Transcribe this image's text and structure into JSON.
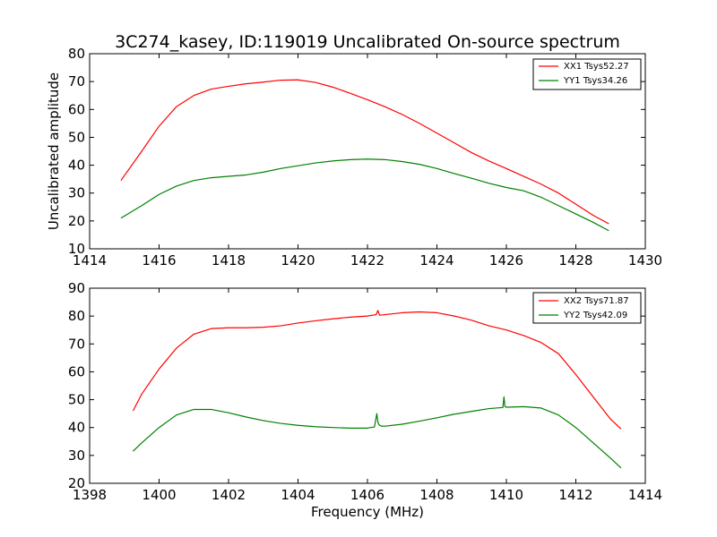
{
  "title": "3C274_kasey, ID:119019 Uncalibrated On-source spectrum",
  "chart_data": [
    {
      "type": "line",
      "title": "3C274_kasey, ID:119019 Uncalibrated On-source spectrum",
      "xlabel": "",
      "ylabel": "Uncalibrated amplitude",
      "xlim": [
        1414,
        1430
      ],
      "ylim": [
        10,
        80
      ],
      "xticks": [
        "1414",
        "1416",
        "1418",
        "1420",
        "1422",
        "1424",
        "1426",
        "1428",
        "1430"
      ],
      "yticks": [
        "10",
        "20",
        "30",
        "40",
        "50",
        "60",
        "70",
        "80"
      ],
      "legend_position": "top-right",
      "grid": false,
      "series": [
        {
          "name": "XX1 Tsys52.27",
          "color": "#ff0000",
          "x": [
            1414.9,
            1415.5,
            1416.0,
            1416.5,
            1417.0,
            1417.5,
            1418.0,
            1418.5,
            1419.0,
            1419.5,
            1420.0,
            1420.5,
            1421.0,
            1421.5,
            1422.0,
            1422.5,
            1423.0,
            1423.5,
            1424.0,
            1424.5,
            1425.0,
            1425.5,
            1426.0,
            1426.5,
            1427.0,
            1427.5,
            1428.0,
            1428.5,
            1428.95
          ],
          "values": [
            34.5,
            45.0,
            54.0,
            61.0,
            65.0,
            67.3,
            68.3,
            69.2,
            69.8,
            70.5,
            70.6,
            69.7,
            68.0,
            65.8,
            63.5,
            61.0,
            58.2,
            55.0,
            51.5,
            48.0,
            44.5,
            41.5,
            38.8,
            36.0,
            33.2,
            30.0,
            26.0,
            22.0,
            19.0
          ]
        },
        {
          "name": "YY1 Tsys34.26",
          "color": "#008000",
          "x": [
            1414.9,
            1415.5,
            1416.0,
            1416.5,
            1417.0,
            1417.5,
            1418.0,
            1418.5,
            1419.0,
            1419.5,
            1420.0,
            1420.5,
            1421.0,
            1421.5,
            1422.0,
            1422.5,
            1423.0,
            1423.5,
            1424.0,
            1424.5,
            1425.0,
            1425.5,
            1426.0,
            1426.5,
            1427.0,
            1427.5,
            1428.0,
            1428.5,
            1428.95
          ],
          "values": [
            21.0,
            25.5,
            29.5,
            32.5,
            34.5,
            35.5,
            36.0,
            36.5,
            37.5,
            38.8,
            39.8,
            40.8,
            41.5,
            42.0,
            42.2,
            42.0,
            41.3,
            40.3,
            38.8,
            37.0,
            35.3,
            33.5,
            32.0,
            30.8,
            28.5,
            25.5,
            22.5,
            19.5,
            16.5
          ]
        }
      ]
    },
    {
      "type": "line",
      "title": "",
      "xlabel": "Frequency (MHz)",
      "ylabel": "",
      "xlim": [
        1398,
        1414
      ],
      "ylim": [
        20,
        90
      ],
      "xticks": [
        "1398",
        "1400",
        "1402",
        "1404",
        "1406",
        "1408",
        "1410",
        "1412",
        "1414"
      ],
      "yticks": [
        "20",
        "30",
        "40",
        "50",
        "60",
        "70",
        "80",
        "90"
      ],
      "legend_position": "top-right",
      "grid": false,
      "series": [
        {
          "name": "XX2 Tsys71.87",
          "color": "#ff0000",
          "x": [
            1399.25,
            1399.5,
            1400.0,
            1400.5,
            1401.0,
            1401.5,
            1402.0,
            1402.5,
            1403.0,
            1403.5,
            1404.0,
            1404.5,
            1405.0,
            1405.5,
            1406.0,
            1406.25,
            1406.3,
            1406.35,
            1406.5,
            1407.0,
            1407.5,
            1408.0,
            1408.5,
            1409.0,
            1409.5,
            1410.0,
            1410.5,
            1411.0,
            1411.5,
            1412.0,
            1412.5,
            1413.0,
            1413.3
          ],
          "values": [
            46.0,
            52.0,
            61.0,
            68.5,
            73.5,
            75.5,
            75.8,
            75.8,
            76.0,
            76.5,
            77.5,
            78.3,
            79.0,
            79.6,
            80.0,
            80.5,
            82.0,
            80.3,
            80.5,
            81.2,
            81.5,
            81.2,
            80.0,
            78.5,
            76.5,
            75.0,
            73.0,
            70.5,
            66.5,
            59.0,
            51.0,
            43.0,
            39.5
          ]
        },
        {
          "name": "YY2 Tsys42.09",
          "color": "#008000",
          "x": [
            1399.25,
            1399.5,
            1400.0,
            1400.5,
            1401.0,
            1401.5,
            1402.0,
            1402.5,
            1403.0,
            1403.5,
            1404.0,
            1404.5,
            1405.0,
            1405.5,
            1406.0,
            1406.2,
            1406.27,
            1406.3,
            1406.33,
            1406.4,
            1406.5,
            1407.0,
            1407.5,
            1408.0,
            1408.5,
            1409.0,
            1409.5,
            1409.9,
            1409.93,
            1409.96,
            1410.0,
            1410.5,
            1411.0,
            1411.5,
            1412.0,
            1412.5,
            1413.0,
            1413.3
          ],
          "values": [
            31.5,
            34.5,
            40.0,
            44.5,
            46.5,
            46.5,
            45.3,
            43.8,
            42.5,
            41.5,
            40.8,
            40.3,
            40.0,
            39.8,
            39.8,
            40.2,
            45.0,
            42.0,
            41.0,
            40.5,
            40.5,
            41.2,
            42.3,
            43.5,
            44.8,
            45.8,
            46.8,
            47.2,
            51.0,
            47.5,
            47.3,
            47.5,
            47.0,
            44.5,
            40.0,
            34.5,
            29.0,
            25.5
          ]
        }
      ]
    }
  ]
}
